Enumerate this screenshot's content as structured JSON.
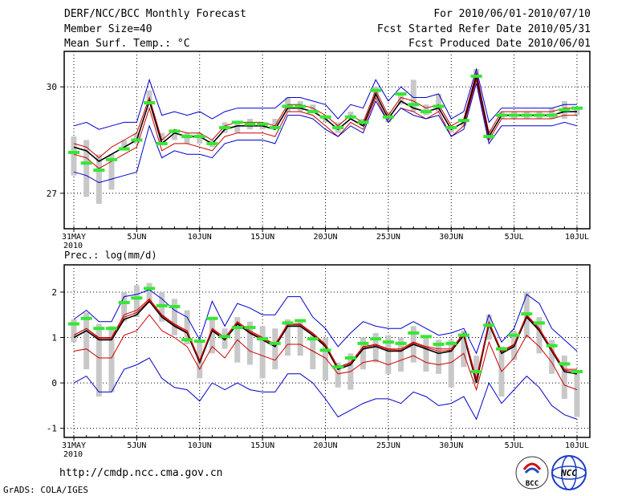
{
  "header": {
    "title": "DERF/NCC/BCC Monthly Forecast",
    "member_size": "Member Size=40",
    "variable": "Mean Surf. Temp.: °C",
    "period": "For 2010/06/01-2010/07/10",
    "started": "Fcst Started Refer Date 2010/05/31",
    "produced": "Fcst Produced Date 2010/06/01"
  },
  "footer": {
    "url": "http://cmdp.ncc.cma.gov.cn",
    "credit": "GrADS: COLA/IGES",
    "logo_left_text": "BCC",
    "logo_right_text": "NCC"
  },
  "colors": {
    "ensemble_bound": "#0000cc",
    "spread": "#cc0000",
    "mean": "#000000",
    "box": "#c8c8c8",
    "obs_marker": "#33e833"
  },
  "chart_data": [
    {
      "type": "line",
      "title": "Mean Surf. Temp.: °C",
      "xlabel": "",
      "ylabel": "°C",
      "x": [
        "5/31",
        "6/1",
        "6/2",
        "6/3",
        "6/4",
        "6/5",
        "6/6",
        "6/7",
        "6/8",
        "6/9",
        "6/10",
        "6/11",
        "6/12",
        "6/13",
        "6/14",
        "6/15",
        "6/16",
        "6/17",
        "6/18",
        "6/19",
        "6/20",
        "6/21",
        "6/22",
        "6/23",
        "6/24",
        "6/25",
        "6/26",
        "6/27",
        "6/28",
        "6/29",
        "6/30",
        "7/1",
        "7/2",
        "7/3",
        "7/4",
        "7/5",
        "7/6",
        "7/7",
        "7/8",
        "7/9",
        "7/10"
      ],
      "ylim": [
        26.0,
        31.0
      ],
      "yticks": [
        27,
        30
      ],
      "xticks": [
        {
          "i": 0,
          "label": "31MAY",
          "sub": "2010"
        },
        {
          "i": 5,
          "label": "5JUN"
        },
        {
          "i": 10,
          "label": "10JUN"
        },
        {
          "i": 15,
          "label": "15JUN"
        },
        {
          "i": 20,
          "label": "20JUN"
        },
        {
          "i": 25,
          "label": "25JUN"
        },
        {
          "i": 30,
          "label": "30JUN"
        },
        {
          "i": 35,
          "label": "5JUL"
        },
        {
          "i": 40,
          "label": "10JUL"
        }
      ],
      "series": [
        {
          "name": "ensemble max",
          "role": "upper",
          "values": [
            28.9,
            29.0,
            28.8,
            28.9,
            29.0,
            29.0,
            30.2,
            29.2,
            29.3,
            29.2,
            29.3,
            29.1,
            29.3,
            29.4,
            29.4,
            29.4,
            29.4,
            29.7,
            29.7,
            29.6,
            29.5,
            29.1,
            29.5,
            29.4,
            30.2,
            29.6,
            30.0,
            29.7,
            29.7,
            29.8,
            29.1,
            29.3,
            30.5,
            29.0,
            29.4,
            29.4,
            29.4,
            29.4,
            29.4,
            29.5,
            29.5
          ]
        },
        {
          "name": "spread upper",
          "role": "spread_upper",
          "values": [
            28.4,
            28.3,
            28.0,
            28.3,
            28.5,
            28.7,
            29.7,
            28.5,
            28.8,
            28.7,
            28.7,
            28.5,
            28.9,
            29.0,
            29.0,
            29.0,
            28.9,
            29.5,
            29.5,
            29.4,
            29.2,
            28.9,
            29.2,
            29.0,
            29.9,
            29.2,
            29.7,
            29.6,
            29.4,
            29.5,
            28.9,
            29.1,
            30.4,
            28.7,
            29.3,
            29.3,
            29.3,
            29.3,
            29.3,
            29.4,
            29.4
          ]
        },
        {
          "name": "ensemble mean",
          "role": "mean",
          "values": [
            28.3,
            28.2,
            27.9,
            28.1,
            28.3,
            28.5,
            29.6,
            28.4,
            28.7,
            28.6,
            28.6,
            28.4,
            28.8,
            28.9,
            28.9,
            28.9,
            28.8,
            29.4,
            29.4,
            29.3,
            29.1,
            28.8,
            29.1,
            28.9,
            29.8,
            29.1,
            29.6,
            29.4,
            29.3,
            29.4,
            28.8,
            29.0,
            30.3,
            28.6,
            29.2,
            29.2,
            29.2,
            29.2,
            29.2,
            29.3,
            29.3
          ]
        },
        {
          "name": "spread lower",
          "role": "spread_lower",
          "values": [
            28.1,
            28.0,
            27.7,
            27.9,
            28.1,
            28.3,
            29.4,
            28.2,
            28.4,
            28.4,
            28.3,
            28.2,
            28.6,
            28.7,
            28.7,
            28.7,
            28.6,
            29.3,
            29.3,
            29.2,
            28.9,
            28.6,
            29.0,
            28.8,
            29.7,
            29.0,
            29.4,
            29.3,
            29.1,
            29.3,
            28.6,
            28.9,
            30.2,
            28.5,
            29.1,
            29.1,
            29.1,
            29.1,
            29.1,
            29.2,
            29.2
          ]
        },
        {
          "name": "ensemble min",
          "role": "lower",
          "values": [
            27.6,
            27.5,
            27.3,
            27.4,
            27.5,
            27.6,
            28.9,
            28.0,
            28.2,
            28.1,
            28.1,
            28.0,
            28.4,
            28.5,
            28.5,
            28.5,
            28.4,
            29.2,
            29.2,
            29.1,
            28.8,
            28.6,
            28.9,
            28.7,
            29.6,
            29.0,
            29.4,
            29.2,
            29.1,
            29.2,
            28.6,
            28.8,
            30.1,
            28.4,
            28.9,
            28.9,
            28.9,
            28.9,
            28.9,
            29.0,
            28.9
          ]
        }
      ],
      "boxes": [
        [
          27.5,
          28.6
        ],
        [
          26.9,
          28.5
        ],
        [
          26.7,
          28.1
        ],
        [
          27.1,
          28.1
        ],
        [
          28.3,
          28.5
        ],
        [
          28.4,
          28.7
        ],
        [
          29.5,
          29.9
        ],
        [
          28.4,
          28.7
        ],
        [
          28.5,
          28.8
        ],
        [
          28.4,
          28.7
        ],
        [
          28.4,
          28.7
        ],
        [
          28.3,
          28.5
        ],
        [
          28.7,
          29.0
        ],
        [
          28.7,
          29.0
        ],
        [
          28.8,
          29.1
        ],
        [
          28.8,
          29.0
        ],
        [
          28.9,
          29.1
        ],
        [
          29.3,
          29.7
        ],
        [
          29.3,
          29.6
        ],
        [
          29.3,
          29.5
        ],
        [
          29.0,
          29.2
        ],
        [
          28.7,
          29.0
        ],
        [
          29.1,
          29.3
        ],
        [
          28.9,
          29.1
        ],
        [
          29.7,
          30.0
        ],
        [
          29.0,
          29.3
        ],
        [
          29.5,
          29.8
        ],
        [
          29.3,
          30.2
        ],
        [
          29.2,
          29.5
        ],
        [
          29.3,
          29.8
        ],
        [
          28.7,
          28.9
        ],
        [
          28.9,
          29.1
        ],
        [
          30.1,
          30.5
        ],
        [
          28.5,
          28.8
        ],
        [
          29.1,
          29.3
        ],
        [
          29.1,
          29.3
        ],
        [
          29.1,
          29.3
        ],
        [
          29.1,
          29.3
        ],
        [
          29.1,
          29.4
        ],
        [
          29.1,
          29.6
        ],
        [
          29.2,
          29.4
        ]
      ],
      "obs": [
        28.15,
        27.85,
        27.65,
        27.95,
        28.25,
        28.5,
        29.55,
        28.4,
        28.75,
        28.6,
        28.6,
        28.4,
        28.85,
        29.0,
        28.95,
        28.95,
        28.85,
        29.45,
        29.45,
        29.3,
        29.15,
        28.85,
        29.15,
        29.0,
        29.9,
        29.15,
        29.8,
        29.5,
        29.3,
        29.45,
        28.85,
        29.05,
        30.3,
        28.6,
        29.2,
        29.2,
        29.2,
        29.2,
        29.2,
        29.35,
        29.4
      ]
    },
    {
      "type": "line",
      "title": "Prec.: log(mm/d)",
      "xlabel": "",
      "ylabel": "log(mm/d)",
      "x": [
        "5/31",
        "6/1",
        "6/2",
        "6/3",
        "6/4",
        "6/5",
        "6/6",
        "6/7",
        "6/8",
        "6/9",
        "6/10",
        "6/11",
        "6/12",
        "6/13",
        "6/14",
        "6/15",
        "6/16",
        "6/17",
        "6/18",
        "6/19",
        "6/20",
        "6/21",
        "6/22",
        "6/23",
        "6/24",
        "6/25",
        "6/26",
        "6/27",
        "6/28",
        "6/29",
        "6/30",
        "7/1",
        "7/2",
        "7/3",
        "7/4",
        "7/5",
        "7/6",
        "7/7",
        "7/8",
        "7/9",
        "7/10"
      ],
      "ylim": [
        -1.2,
        2.6
      ],
      "yticks": [
        -1,
        0,
        1,
        2
      ],
      "xticks": [
        {
          "i": 0,
          "label": "31MAY",
          "sub": "2010"
        },
        {
          "i": 5,
          "label": "5JUN"
        },
        {
          "i": 10,
          "label": "10JUN"
        },
        {
          "i": 15,
          "label": "15JUN"
        },
        {
          "i": 20,
          "label": "20JUN"
        },
        {
          "i": 25,
          "label": "25JUN"
        },
        {
          "i": 30,
          "label": "30JUN"
        },
        {
          "i": 35,
          "label": "5JUL"
        },
        {
          "i": 40,
          "label": "10JUL"
        }
      ],
      "series": [
        {
          "name": "ensemble max",
          "role": "upper",
          "values": [
            1.4,
            1.6,
            1.35,
            1.35,
            1.9,
            1.95,
            2.05,
            1.85,
            1.6,
            1.45,
            0.95,
            1.8,
            1.25,
            1.75,
            1.65,
            1.5,
            1.5,
            1.9,
            1.9,
            1.45,
            1.2,
            0.8,
            1.1,
            1.35,
            1.25,
            1.2,
            1.2,
            1.35,
            1.2,
            1.05,
            1.1,
            1.2,
            0.65,
            1.5,
            0.9,
            1.2,
            1.95,
            1.75,
            1.2,
            0.95,
            0.7
          ]
        },
        {
          "name": "spread upper",
          "role": "spread_upper",
          "values": [
            1.05,
            1.2,
            1.0,
            1.0,
            1.5,
            1.6,
            1.85,
            1.5,
            1.3,
            1.15,
            0.5,
            1.2,
            1.0,
            1.35,
            1.15,
            1.0,
            0.85,
            1.3,
            1.3,
            1.1,
            0.85,
            0.35,
            0.45,
            0.8,
            0.85,
            0.75,
            0.75,
            0.9,
            0.8,
            0.75,
            0.75,
            1.1,
            0.1,
            1.35,
            0.7,
            0.85,
            1.5,
            1.2,
            0.75,
            0.3,
            0.3
          ]
        },
        {
          "name": "ensemble mean",
          "role": "mean",
          "values": [
            1.0,
            1.15,
            0.95,
            0.95,
            1.4,
            1.5,
            1.8,
            1.45,
            1.25,
            1.1,
            0.45,
            1.15,
            0.95,
            1.3,
            1.1,
            0.95,
            0.8,
            1.25,
            1.25,
            1.05,
            0.8,
            0.3,
            0.4,
            0.75,
            0.8,
            0.7,
            0.7,
            0.85,
            0.75,
            0.65,
            0.7,
            1.05,
            0.0,
            1.3,
            0.65,
            0.8,
            1.45,
            1.15,
            0.7,
            0.25,
            0.2
          ]
        },
        {
          "name": "spread lower",
          "role": "spread_lower",
          "values": [
            0.7,
            0.75,
            0.55,
            0.55,
            1.05,
            1.15,
            1.5,
            1.15,
            1.0,
            0.8,
            0.3,
            0.8,
            0.55,
            0.95,
            0.7,
            0.6,
            0.5,
            0.85,
            0.85,
            0.7,
            0.55,
            0.2,
            0.25,
            0.45,
            0.5,
            0.4,
            0.5,
            0.6,
            0.45,
            0.4,
            0.45,
            0.65,
            -0.15,
            0.9,
            0.25,
            0.55,
            1.05,
            0.8,
            0.45,
            -0.05,
            -0.15
          ]
        },
        {
          "name": "ensemble min",
          "role": "lower",
          "values": [
            0.0,
            0.15,
            -0.2,
            -0.2,
            0.3,
            0.4,
            0.55,
            0.1,
            -0.1,
            -0.15,
            -0.4,
            0.0,
            -0.15,
            0.0,
            -0.15,
            -0.2,
            -0.2,
            0.2,
            0.2,
            0.0,
            -0.35,
            -0.75,
            -0.6,
            -0.45,
            -0.35,
            -0.35,
            -0.45,
            -0.2,
            -0.3,
            -0.5,
            -0.45,
            -0.3,
            -0.8,
            0.0,
            -0.45,
            -0.15,
            0.15,
            -0.1,
            -0.5,
            -0.7,
            -0.8
          ]
        },
        {
          "name": "second central line",
          "role": "center",
          "values": [
            1.05,
            1.2,
            0.98,
            0.98,
            1.45,
            1.55,
            1.82,
            1.48,
            1.28,
            1.12,
            0.48,
            1.18,
            0.97,
            1.33,
            1.12,
            0.98,
            0.83,
            1.28,
            1.28,
            1.08,
            0.83,
            0.33,
            0.43,
            0.78,
            0.83,
            0.73,
            0.72,
            0.88,
            0.78,
            0.7,
            0.72,
            1.08,
            0.05,
            1.32,
            0.68,
            0.83,
            1.48,
            1.18,
            0.72,
            0.28,
            0.25
          ]
        }
      ],
      "boxes": [
        [
          0.9,
          1.4
        ],
        [
          0.3,
          1.55
        ],
        [
          -0.3,
          1.3
        ],
        [
          -0.2,
          1.25
        ],
        [
          1.35,
          2.0
        ],
        [
          1.45,
          2.15
        ],
        [
          1.75,
          2.2
        ],
        [
          1.35,
          2.0
        ],
        [
          1.05,
          1.85
        ],
        [
          0.85,
          1.6
        ],
        [
          0.1,
          0.95
        ],
        [
          0.65,
          1.4
        ],
        [
          0.75,
          1.2
        ],
        [
          0.45,
          1.45
        ],
        [
          0.4,
          1.35
        ],
        [
          0.1,
          1.25
        ],
        [
          0.3,
          1.2
        ],
        [
          0.6,
          1.4
        ],
        [
          0.6,
          1.35
        ],
        [
          0.3,
          1.05
        ],
        [
          0.05,
          1.0
        ],
        [
          -0.1,
          0.45
        ],
        [
          -0.15,
          0.65
        ],
        [
          0.3,
          1.0
        ],
        [
          0.45,
          1.1
        ],
        [
          0.2,
          1.05
        ],
        [
          0.25,
          1.0
        ],
        [
          0.45,
          1.25
        ],
        [
          0.25,
          1.05
        ],
        [
          0.2,
          0.95
        ],
        [
          -0.1,
          0.95
        ],
        [
          0.35,
          1.15
        ],
        [
          0.0,
          0.6
        ],
        [
          0.95,
          1.5
        ],
        [
          -0.3,
          0.8
        ],
        [
          0.5,
          1.15
        ],
        [
          1.0,
          2.0
        ],
        [
          0.65,
          1.45
        ],
        [
          0.2,
          0.95
        ],
        [
          -0.35,
          0.6
        ],
        [
          -0.75,
          0.25
        ]
      ],
      "obs": [
        1.3,
        1.42,
        1.2,
        1.2,
        1.77,
        1.87,
        2.08,
        1.7,
        1.68,
        0.95,
        0.92,
        1.42,
        1.02,
        1.22,
        1.22,
        0.97,
        0.87,
        1.32,
        1.37,
        0.97,
        0.72,
        0.35,
        0.55,
        0.87,
        0.97,
        0.9,
        0.87,
        1.1,
        1.02,
        0.85,
        0.87,
        1.05,
        0.25,
        1.27,
        0.75,
        1.05,
        1.52,
        1.32,
        0.82,
        0.42,
        0.25
      ]
    }
  ]
}
